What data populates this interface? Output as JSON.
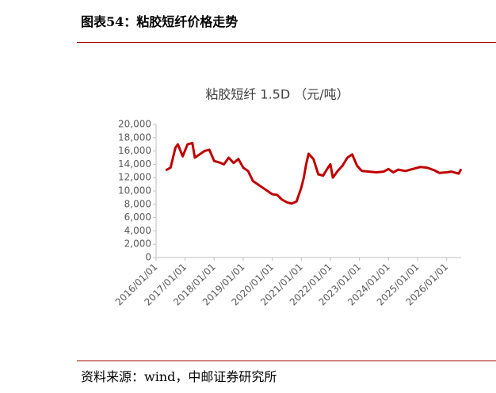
{
  "header": {
    "title": "图表54：粘胶短纤价格走势"
  },
  "source": "资料来源：wind，中邮证券研究所",
  "chart_data": {
    "type": "line",
    "title": "粘胶短纤 1.5D （元/吨）",
    "x": [
      "2016/05/01",
      "2016/07/01",
      "2016/09/01",
      "2016/10/01",
      "2016/12/01",
      "2017/02/01",
      "2017/04/01",
      "2017/05/01",
      "2017/07/01",
      "2017/09/01",
      "2017/11/01",
      "2018/01/01",
      "2018/03/01",
      "2018/05/01",
      "2018/07/01",
      "2018/09/01",
      "2018/11/01",
      "2019/01/01",
      "2019/03/01",
      "2019/05/01",
      "2019/07/01",
      "2019/09/01",
      "2019/11/01",
      "2020/01/01",
      "2020/03/01",
      "2020/05/01",
      "2020/07/01",
      "2020/09/01",
      "2020/11/01",
      "2021/01/01",
      "2021/02/01",
      "2021/03/01",
      "2021/04/01",
      "2021/06/01",
      "2021/08/01",
      "2021/10/01",
      "2021/12/01",
      "2022/01/01",
      "2022/02/01",
      "2022/04/01",
      "2022/06/01",
      "2022/08/01",
      "2022/10/01",
      "2022/12/01",
      "2023/02/01",
      "2023/05/01",
      "2023/08/01",
      "2023/11/01",
      "2024/01/01",
      "2024/03/01",
      "2024/05/01",
      "2024/08/01",
      "2024/11/01",
      "2025/02/01",
      "2025/05/01",
      "2025/08/01",
      "2025/10/01",
      "2026/01/01",
      "2026/03/01",
      "2026/05/01",
      "2026/06/01",
      "2026/07/01"
    ],
    "series": [
      {
        "color": "#c00000",
        "values": [
          13100,
          13500,
          16500,
          17000,
          15200,
          17000,
          17200,
          15000,
          15500,
          16000,
          16200,
          14500,
          14300,
          14000,
          15000,
          14200,
          14800,
          13500,
          13000,
          11500,
          11000,
          10500,
          10000,
          9500,
          9400,
          8700,
          8300,
          8100,
          8400,
          10500,
          12000,
          14000,
          15600,
          14800,
          12500,
          12300,
          13500,
          14000,
          12000,
          13000,
          13800,
          15000,
          15500,
          13800,
          13000,
          12900,
          12800,
          12900,
          13300,
          12800,
          13200,
          13000,
          13300,
          13600,
          13500,
          13100,
          12700,
          12800,
          12900,
          12700,
          12600,
          13300
        ]
      }
    ],
    "xlim": [
      "2016/01/01",
      "2026/07/01"
    ],
    "xticks": [
      "2016/01/01",
      "2017/01/01",
      "2018/01/01",
      "2019/01/01",
      "2020/01/01",
      "2021/01/01",
      "2022/01/01",
      "2023/01/01",
      "2024/01/01",
      "2025/01/01",
      "2026/01/01"
    ],
    "ylim": [
      0,
      20000
    ],
    "yticks": [
      0,
      {
        "value": 2000,
        "label": "2,000"
      },
      {
        "value": 4000,
        "label": "4,000"
      },
      {
        "value": 6000,
        "label": "6,000"
      },
      {
        "value": 8000,
        "label": "8,000"
      },
      {
        "value": 10000,
        "label": "10,000"
      },
      {
        "value": 12000,
        "label": "12,000"
      },
      {
        "value": 14000,
        "label": "14,000"
      },
      {
        "value": 16000,
        "label": "16,000"
      },
      {
        "value": 18000,
        "label": "18,000"
      },
      {
        "value": 20000,
        "label": "20,000"
      }
    ]
  }
}
